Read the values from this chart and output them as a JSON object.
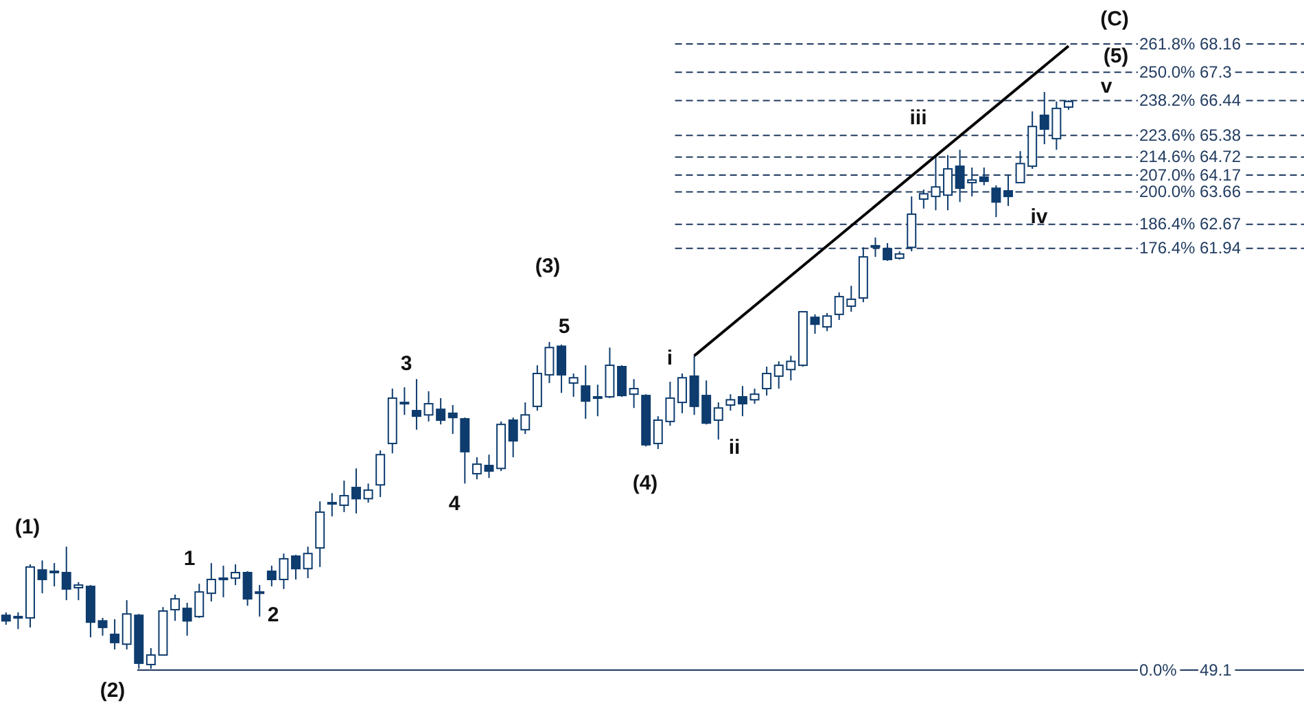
{
  "chart_data": {
    "type": "candlestick",
    "ylim": [
      47.43,
      69.5
    ],
    "y2lim": [
      -22.94,
      280.21
    ],
    "tick_labels": "y",
    "categories": [
      null,
      null,
      null,
      null,
      null,
      null,
      null,
      null,
      null,
      null,
      null,
      null,
      null,
      null,
      null,
      null,
      null,
      null,
      null,
      null,
      null,
      null,
      null,
      null,
      null,
      null,
      null,
      null,
      null,
      null,
      null,
      null,
      null,
      null,
      null,
      null,
      null,
      null,
      null,
      null,
      null,
      null,
      null,
      null,
      null,
      null,
      null,
      null,
      null,
      null,
      null,
      null,
      null,
      null,
      null,
      null,
      null,
      null,
      null,
      null,
      null,
      null,
      null,
      null,
      null,
      null,
      null,
      null,
      null,
      null,
      null,
      null,
      null,
      null,
      null,
      null,
      null,
      null,
      null,
      null,
      null,
      null,
      null,
      null,
      null,
      null,
      null,
      null,
      null,
      null,
      null,
      null,
      null,
      null,
      null,
      null,
      null,
      null,
      null,
      null,
      null,
      null,
      null,
      null,
      null,
      null,
      null,
      null
    ],
    "yticks": [
      68.16,
      67.3,
      66.44,
      65.38,
      64.72,
      64.17,
      63.66,
      62.67,
      61.94,
      49.1
    ],
    "y2ticks": [
      {
        "value": 261.8,
        "label": "261.8%"
      },
      {
        "value": 250,
        "label": "250.0%"
      },
      {
        "value": 238.2,
        "label": "238.2%"
      },
      {
        "value": 223.6,
        "label": "223.6%"
      },
      {
        "value": 214.6,
        "label": "214.6%"
      },
      {
        "value": 207,
        "label": "207.0%"
      },
      {
        "value": 200,
        "label": "200.0%"
      },
      {
        "value": 186.4,
        "label": "186.4%"
      },
      {
        "value": 176.4,
        "label": "176.4%"
      },
      {
        "value": 0,
        "label": "0.0%"
      }
    ],
    "series": [
      {
        "color": "#0e3c6e",
        "ohlc": [
          [
            50.77,
            50.86,
            50.48,
            50.6
          ],
          [
            50.73,
            50.86,
            50.35,
            50.73
          ],
          [
            50.69,
            52.32,
            50.4,
            52.24
          ],
          [
            52.15,
            52.44,
            51.44,
            51.86
          ],
          [
            52.11,
            52.36,
            51.65,
            52.11
          ],
          [
            52.07,
            52.86,
            51.23,
            51.57
          ],
          [
            51.61,
            51.78,
            51.23,
            51.69
          ],
          [
            51.65,
            51.69,
            50.1,
            50.56
          ],
          [
            50.6,
            50.69,
            50.15,
            50.4
          ],
          [
            50.19,
            50.65,
            49.73,
            49.94
          ],
          [
            49.89,
            51.23,
            49.73,
            50.81
          ],
          [
            50.77,
            50.81,
            49.14,
            49.31
          ],
          [
            49.27,
            49.77,
            49.14,
            49.56
          ],
          [
            49.56,
            51.02,
            49.56,
            50.9
          ],
          [
            50.94,
            51.4,
            50.6,
            51.27
          ],
          [
            50.98,
            51.15,
            50.15,
            50.6
          ],
          [
            50.73,
            51.73,
            50.69,
            51.48
          ],
          [
            51.44,
            52.36,
            51.19,
            51.86
          ],
          [
            51.9,
            52.28,
            51.32,
            51.9
          ],
          [
            51.9,
            52.32,
            51.69,
            52.07
          ],
          [
            52.07,
            52.11,
            51.06,
            51.27
          ],
          [
            51.48,
            51.69,
            50.73,
            51.48
          ],
          [
            52.11,
            52.28,
            51.65,
            51.86
          ],
          [
            51.86,
            52.65,
            51.57,
            52.49
          ],
          [
            52.57,
            52.61,
            51.86,
            52.19
          ],
          [
            52.19,
            52.86,
            51.9,
            52.65
          ],
          [
            52.82,
            54.24,
            52.24,
            53.91
          ],
          [
            54.2,
            54.49,
            53.78,
            54.2
          ],
          [
            54.12,
            54.87,
            53.91,
            54.41
          ],
          [
            54.66,
            55.24,
            53.87,
            54.32
          ],
          [
            54.32,
            54.78,
            54.2,
            54.58
          ],
          [
            54.74,
            55.79,
            54.37,
            55.66
          ],
          [
            56.0,
            57.67,
            55.7,
            57.38
          ],
          [
            57.25,
            57.71,
            56.87,
            57.25
          ],
          [
            57.0,
            57.96,
            56.42,
            56.83
          ],
          [
            56.87,
            57.59,
            56.67,
            57.21
          ],
          [
            57.04,
            57.38,
            56.58,
            56.71
          ],
          [
            56.92,
            57.17,
            56.29,
            56.79
          ],
          [
            56.75,
            56.79,
            54.78,
            55.75
          ],
          [
            55.08,
            55.58,
            54.91,
            55.37
          ],
          [
            55.33,
            55.66,
            54.95,
            55.16
          ],
          [
            55.24,
            56.67,
            55.16,
            56.58
          ],
          [
            56.71,
            56.79,
            55.58,
            56.08
          ],
          [
            56.42,
            57.25,
            56.29,
            56.87
          ],
          [
            57.13,
            58.38,
            57.0,
            58.13
          ],
          [
            58.09,
            59.09,
            57.84,
            58.92
          ],
          [
            58.96,
            59.01,
            57.54,
            58.09
          ],
          [
            57.84,
            58.13,
            57.42,
            58.0
          ],
          [
            57.75,
            58.38,
            56.75,
            57.29
          ],
          [
            57.42,
            57.79,
            56.83,
            57.42
          ],
          [
            57.42,
            58.92,
            57.38,
            58.38
          ],
          [
            58.34,
            58.38,
            57.42,
            57.46
          ],
          [
            57.5,
            57.96,
            57.08,
            57.67
          ],
          [
            57.46,
            57.5,
            55.91,
            55.96
          ],
          [
            56.0,
            56.83,
            55.83,
            56.71
          ],
          [
            56.67,
            57.88,
            56.54,
            57.38
          ],
          [
            57.25,
            58.13,
            56.92,
            58.0
          ],
          [
            58.05,
            58.67,
            56.87,
            57.13
          ],
          [
            57.46,
            57.92,
            56.58,
            56.62
          ],
          [
            56.71,
            57.25,
            56.12,
            57.08
          ],
          [
            57.17,
            57.5,
            57.0,
            57.33
          ],
          [
            57.42,
            57.75,
            56.83,
            57.21
          ],
          [
            57.33,
            57.67,
            57.21,
            57.5
          ],
          [
            57.67,
            58.34,
            57.46,
            58.13
          ],
          [
            58.05,
            58.5,
            57.67,
            58.38
          ],
          [
            58.25,
            58.67,
            57.92,
            58.5
          ],
          [
            58.38,
            60.01,
            58.34,
            60.01
          ],
          [
            59.84,
            59.93,
            59.34,
            59.63
          ],
          [
            59.55,
            59.97,
            59.42,
            59.88
          ],
          [
            59.93,
            60.6,
            59.76,
            60.47
          ],
          [
            60.18,
            60.8,
            60.01,
            60.39
          ],
          [
            60.43,
            61.97,
            60.3,
            61.68
          ],
          [
            62.02,
            62.27,
            61.68,
            62.02
          ],
          [
            61.93,
            62.1,
            61.56,
            61.6
          ],
          [
            61.64,
            61.85,
            61.6,
            61.77
          ],
          [
            61.97,
            63.52,
            61.85,
            62.98
          ],
          [
            63.44,
            63.73,
            63.15,
            63.6
          ],
          [
            63.52,
            64.78,
            63.1,
            63.81
          ],
          [
            63.56,
            64.78,
            63.1,
            64.36
          ],
          [
            64.44,
            64.94,
            63.35,
            63.77
          ],
          [
            63.94,
            64.4,
            63.52,
            64.02
          ],
          [
            64.11,
            64.4,
            63.86,
            63.98
          ],
          [
            63.77,
            63.86,
            62.89,
            63.35
          ],
          [
            63.69,
            64.19,
            63.23,
            63.52
          ],
          [
            63.94,
            64.9,
            63.94,
            64.52
          ],
          [
            64.44,
            66.11,
            64.36,
            65.65
          ],
          [
            65.99,
            66.7,
            65.11,
            65.57
          ],
          [
            65.28,
            66.41,
            64.94,
            66.2
          ],
          [
            66.24,
            66.45,
            66.16,
            66.41
          ],
          null,
          null,
          null,
          null,
          null,
          null,
          null,
          null,
          null,
          null,
          null,
          null,
          null,
          null,
          null,
          null,
          null,
          null,
          null
        ]
      },
      {
        "type": "line",
        "color": "#000000",
        "values": [
          null,
          null,
          null,
          null,
          null,
          null,
          null,
          null,
          null,
          null,
          null,
          null,
          null,
          null,
          null,
          null,
          null,
          null,
          null,
          null,
          null,
          null,
          null,
          null,
          null,
          null,
          null,
          null,
          null,
          null,
          null,
          null,
          null,
          null,
          null,
          null,
          null,
          null,
          null,
          null,
          null,
          null,
          null,
          null,
          null,
          null,
          null,
          null,
          null,
          null,
          null,
          null,
          null,
          null,
          null,
          null,
          null,
          58.67,
          null,
          null,
          null,
          null,
          null,
          null,
          null,
          null,
          null,
          null,
          null,
          null,
          null,
          null,
          null,
          null,
          null,
          null,
          null,
          null,
          null,
          null,
          null,
          null,
          null,
          null,
          null,
          null,
          null,
          null,
          68.1,
          null,
          null,
          null,
          null,
          null,
          null,
          null,
          null,
          null,
          null,
          null,
          null,
          null,
          null,
          null,
          null,
          null,
          null,
          null
        ]
      }
    ],
    "ref_lines": [
      {
        "axis": "y",
        "value": 68.16,
        "line_style": "dashed",
        "color": "#1f3a5f"
      },
      {
        "axis": "y",
        "value": 67.3,
        "line_style": "dashed",
        "color": "#1f3a5f"
      },
      {
        "axis": "y",
        "value": 66.44,
        "line_style": "dashed",
        "color": "#1f3a5f"
      },
      {
        "axis": "y",
        "value": 65.38,
        "line_style": "dashed",
        "color": "#1f3a5f"
      },
      {
        "axis": "y",
        "value": 64.72,
        "line_style": "dashed",
        "color": "#1f3a5f"
      },
      {
        "axis": "y",
        "value": 64.17,
        "line_style": "dashed",
        "color": "#1f3a5f"
      },
      {
        "axis": "y",
        "value": 63.66,
        "line_style": "dashed",
        "color": "#1f3a5f"
      },
      {
        "axis": "y",
        "value": 62.67,
        "line_style": "dashed",
        "color": "#1f3a5f"
      },
      {
        "axis": "y",
        "value": 61.94,
        "line_style": "dashed",
        "color": "#1f3a5f"
      },
      {
        "axis": "y",
        "value": 49.1,
        "line_style": "solid",
        "color": "#1f3a5f"
      }
    ],
    "annotations": [
      "(1)",
      "(2)",
      "1",
      "2",
      "3",
      "4",
      "(3)",
      "5",
      "(4)",
      "i",
      "ii",
      "iii",
      "iv",
      "v",
      "(5)",
      "(C)"
    ]
  }
}
